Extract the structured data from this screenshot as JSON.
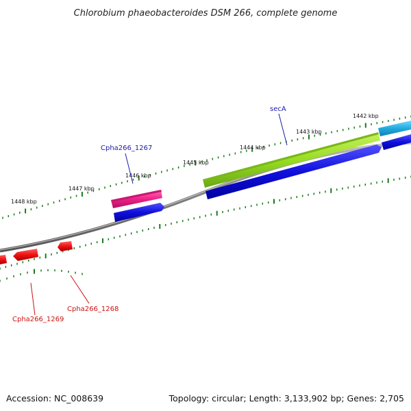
{
  "title": "Chlorobium phaeobacteroides DSM 266, complete genome",
  "footer": {
    "accession": "Accession: NC_008639",
    "summary": "Topology: circular; Length: 3,133,902 bp; Genes: 2,705"
  },
  "ruler": {
    "labels": [
      "1448 kbp",
      "1447 kbp",
      "1446 kbp",
      "1445 kbp",
      "1444 kbp",
      "1443 kbp",
      "1442 kbp"
    ]
  },
  "genes": {
    "forward_labelled": [
      "secA",
      "Cpha266_1267"
    ],
    "reverse_labelled": [
      "Cpha266_1268",
      "Cpha266_1269"
    ]
  },
  "colors": {
    "backbone": "#808080",
    "tick": "#1a7a1a",
    "forward_label": "#1a1aa8",
    "reverse_label": "#cc1111",
    "gene_green": "#99dd22",
    "gene_pink": "#ee2288",
    "gene_cyan": "#22aadd",
    "cds_blue": "#1010dd",
    "cds_red": "#ee1111"
  }
}
